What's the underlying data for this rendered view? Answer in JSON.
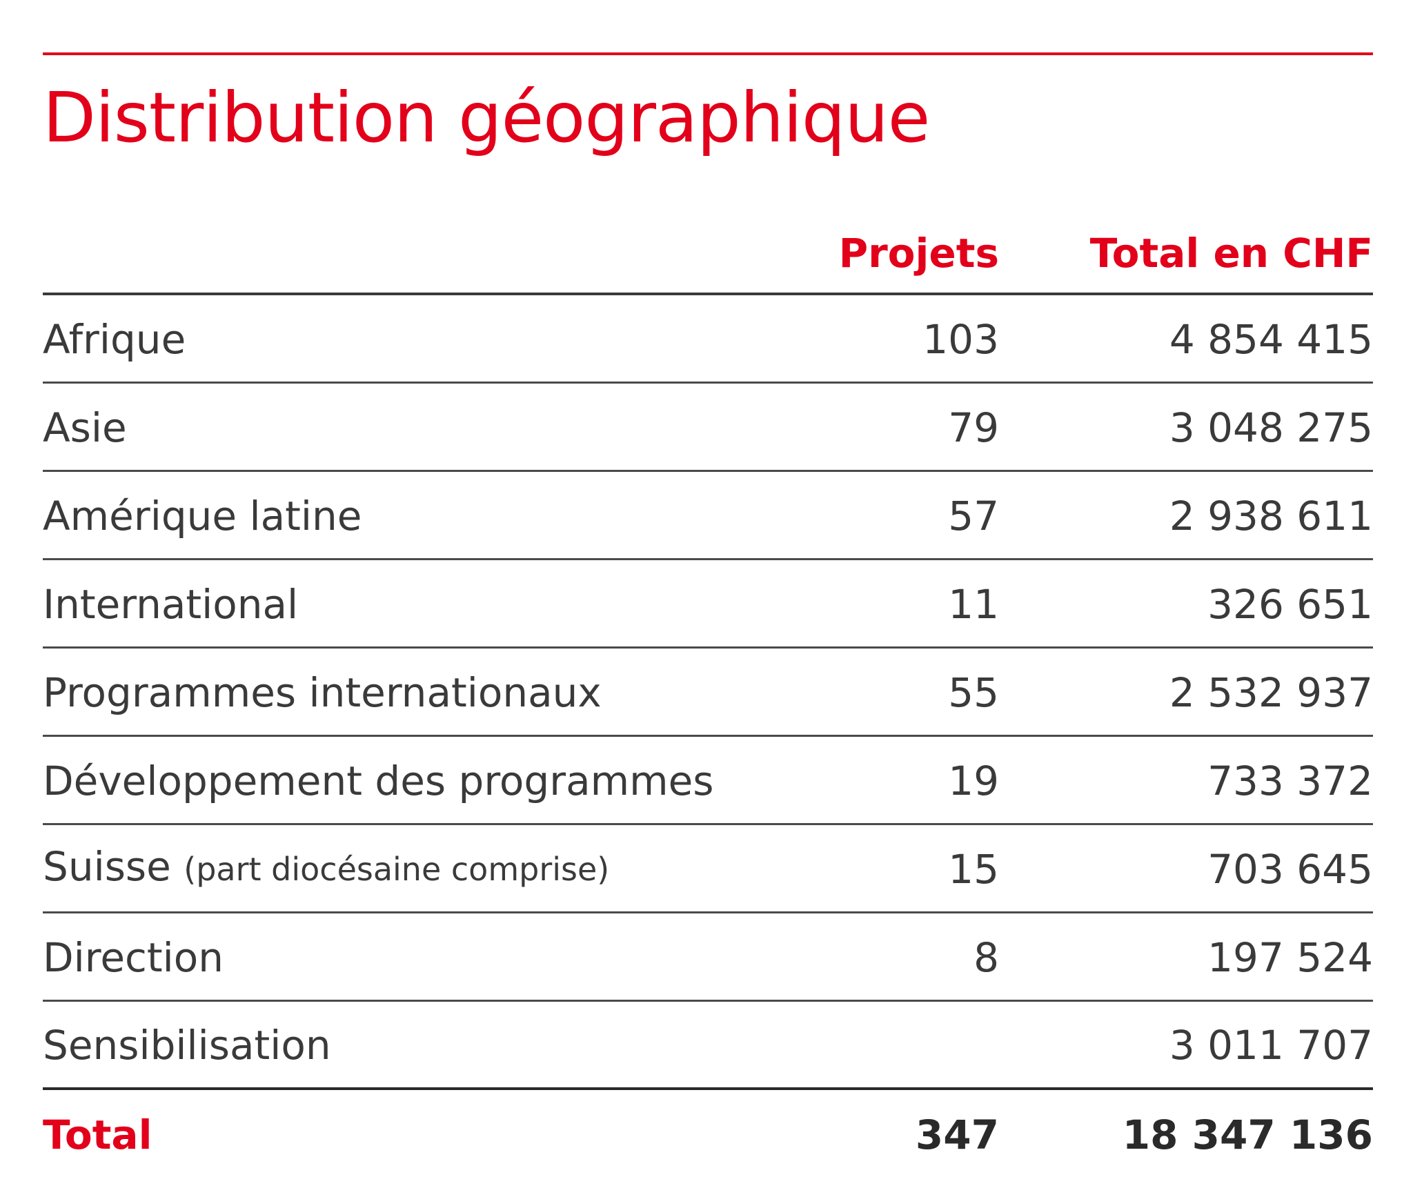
{
  "title": "Distribution géographique",
  "table": {
    "headers": {
      "projects": "Projets",
      "total": "Total en CHF"
    },
    "rows": [
      {
        "region": "Afrique",
        "note": "",
        "projects": "103",
        "total": "4 854 415"
      },
      {
        "region": "Asie",
        "note": "",
        "projects": "79",
        "total": "3 048 275"
      },
      {
        "region": "Amérique latine",
        "note": "",
        "projects": "57",
        "total": "2 938 611"
      },
      {
        "region": "International",
        "note": "",
        "projects": "11",
        "total": "326 651"
      },
      {
        "region": "Programmes internationaux",
        "note": "",
        "projects": "55",
        "total": "2 532 937"
      },
      {
        "region": "Développement des programmes",
        "note": "",
        "projects": "19",
        "total": "733 372"
      },
      {
        "region": "Suisse",
        "note": "(part diocésaine comprise)",
        "projects": "15",
        "total": "703 645"
      },
      {
        "region": "Direction",
        "note": "",
        "projects": "8",
        "total": "197 524"
      },
      {
        "region": "Sensibilisation",
        "note": "",
        "projects": "",
        "total": "3 011 707"
      }
    ],
    "total_row": {
      "label": "Total",
      "projects": "347",
      "total": "18 347 136"
    }
  },
  "colors": {
    "accent": "#e2001a",
    "text": "#3a3a3a",
    "rule": "#4a4a4a"
  }
}
